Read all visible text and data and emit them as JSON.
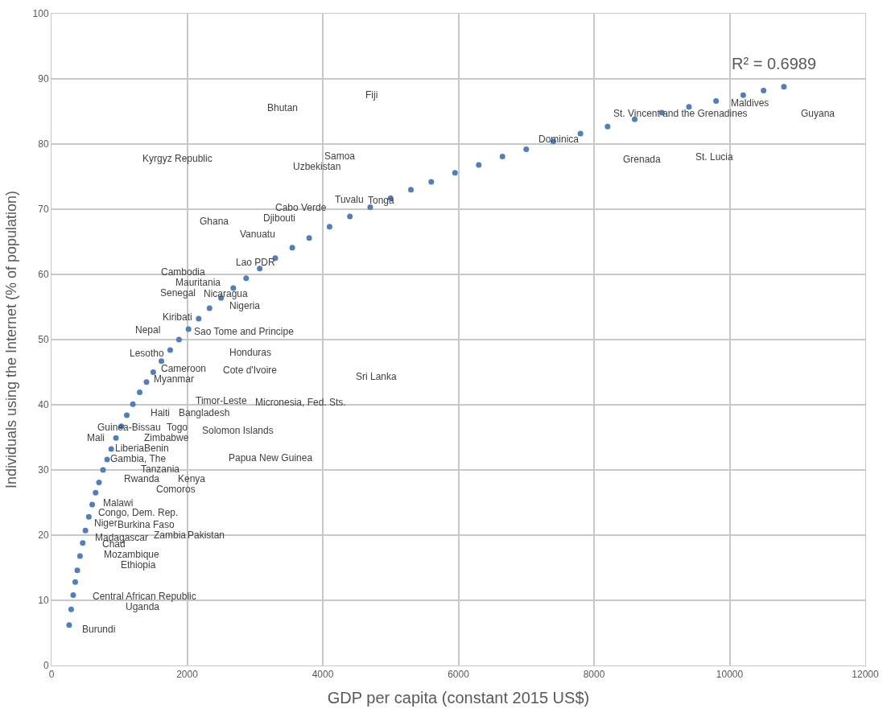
{
  "chart_data": {
    "type": "scatter",
    "xlabel": "GDP per capita (constant 2015 US$)",
    "ylabel": "Individuals using the Internet (% of population)",
    "xlim": [
      0,
      12000
    ],
    "xticks": [
      0,
      2000,
      4000,
      6000,
      8000,
      10000,
      12000
    ],
    "ylim": [
      0,
      100
    ],
    "yticks": [
      0,
      10,
      20,
      30,
      40,
      50,
      60,
      70,
      80,
      90,
      100
    ],
    "grid": true,
    "legend": false,
    "marker": "circle",
    "annotations": [
      "R² = 0.6989",
      "Burundi",
      "Central African Republic",
      "Uganda",
      "Chad",
      "Mozambique",
      "Ethiopia",
      "Madagascar",
      "Burkina Faso",
      "Zambia",
      "Pakistan",
      "Niger",
      "Congo, Dem. Rep.",
      "Malawi",
      "Comoros",
      "Kenya",
      "Rwanda",
      "Tanzania",
      "Gambia, The",
      "Liberia",
      "Guinea-Bissau",
      "Togo",
      "Mali",
      "Zimbabwe",
      "Benin",
      "Papua New Guinea",
      "Solomon Islands",
      "Haiti",
      "Bangladesh",
      "Timor-Leste",
      "Micronesia, Fed. Sts.",
      "Sri Lanka",
      "Myanmar",
      "Cameroon",
      "Cote d'Ivoire",
      "Honduras",
      "Lesotho",
      "Nepal",
      "Sao Tome and Principe",
      "Kiribati",
      "Nigeria",
      "Nicaragua",
      "Senegal",
      "Mauritania",
      "Cambodia",
      "Lao PDR",
      "Vanuatu",
      "Ghana",
      "Djibouti",
      "Cabo Verde",
      "Tuvalu",
      "Tonga",
      "Uzbekistan",
      "Samoa",
      "Kyrgyz Republic",
      "Bhutan",
      "Fiji",
      "Dominica",
      "Grenada",
      "St. Lucia",
      "St. Vincent and the Grenadines",
      "Maldives",
      "Guyana"
    ],
    "series": [
      {
        "color": "#4f7fbf",
        "x": [
          260,
          290,
          320,
          350,
          380,
          420,
          460,
          500,
          550,
          600,
          650,
          700,
          760,
          820,
          880,
          950,
          1030,
          1110,
          1200,
          1300,
          1400,
          1500,
          1620,
          1750,
          1880,
          2020,
          2170,
          2330,
          2500,
          2680,
          2870,
          3070,
          3300,
          3550,
          3800,
          4100,
          4400,
          4700,
          5000,
          5300,
          5600,
          5950,
          6300,
          6650,
          7000,
          7400,
          7800,
          8200,
          8600,
          9000,
          9400,
          9800,
          10200,
          10500,
          10800
        ],
        "values": [
          6.2,
          8.6,
          10.8,
          12.8,
          14.6,
          16.8,
          18.8,
          20.7,
          22.8,
          24.7,
          26.5,
          28.1,
          30.0,
          31.6,
          33.2,
          34.9,
          36.7,
          38.4,
          40.1,
          41.9,
          43.5,
          45.0,
          46.7,
          48.4,
          50.0,
          51.6,
          53.2,
          54.8,
          56.4,
          57.9,
          59.4,
          60.9,
          62.5,
          64.1,
          65.6,
          67.3,
          68.9,
          70.3,
          71.7,
          73.0,
          74.2,
          75.6,
          76.8,
          78.1,
          79.2,
          80.4,
          81.6,
          82.7,
          83.8,
          84.8,
          85.7,
          86.6,
          87.5,
          88.2,
          88.8
        ]
      }
    ]
  }
}
